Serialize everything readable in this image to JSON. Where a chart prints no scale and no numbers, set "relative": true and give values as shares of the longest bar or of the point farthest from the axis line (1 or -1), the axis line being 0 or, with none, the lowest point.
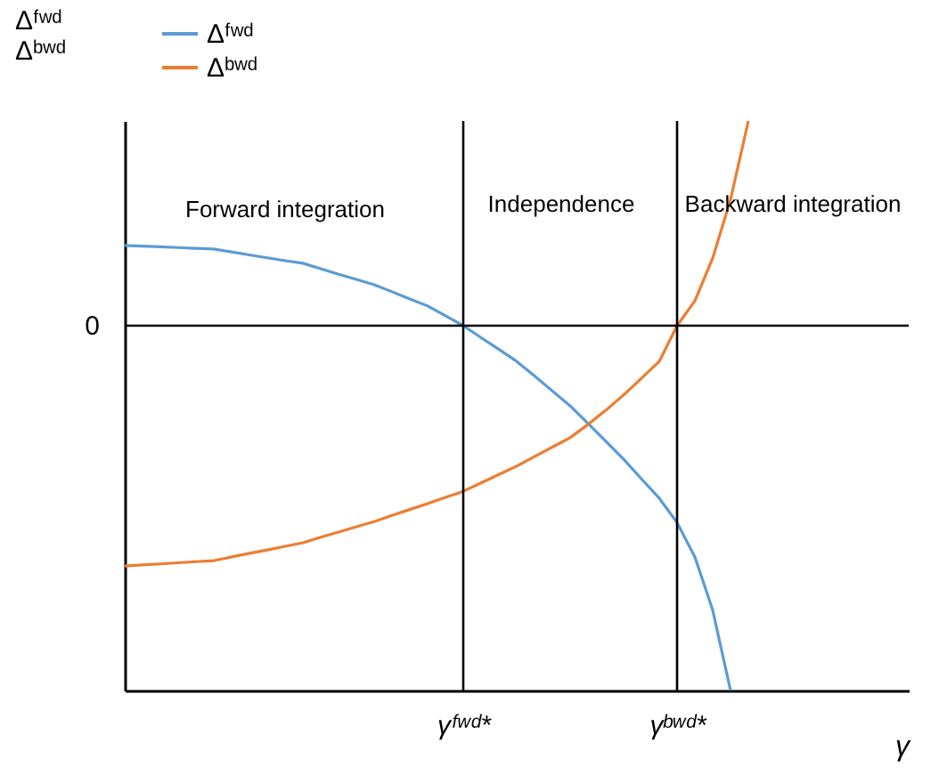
{
  "chart_data": {
    "type": "line",
    "relative": true,
    "xlabel": "γ",
    "ylabel": "Δᶠʷᵈ\nΔᵇʷᵈ",
    "categories": [
      null,
      null,
      null,
      null,
      null,
      null,
      null,
      null,
      null,
      null,
      null,
      null,
      null,
      null,
      null,
      null,
      null,
      null,
      null,
      "γᶠʷᵈ*",
      null,
      null,
      null,
      null,
      null,
      null,
      null,
      null,
      null,
      null,
      null,
      "γᵇʷᵈ*",
      null,
      null,
      null,
      null,
      null,
      null,
      null,
      null,
      null,
      null,
      null,
      null,
      null
    ],
    "series": [
      {
        "name": "Δᶠʷᵈ",
        "color": "#5b9bd5",
        "values": [
          0.22,
          0.218,
          0.216,
          0.214,
          0.212,
          0.21,
          0.202,
          0.194,
          0.186,
          0.178,
          0.171,
          0.156,
          0.141,
          0.127,
          0.112,
          0.093,
          0.073,
          0.054,
          0.027,
          0,
          -0.033,
          -0.065,
          -0.098,
          -0.138,
          -0.179,
          -0.22,
          -0.268,
          -0.317,
          -0.366,
          -0.42,
          -0.473,
          -0.54,
          -0.634,
          -0.78,
          -1,
          null,
          null,
          null,
          null,
          null,
          null,
          null,
          null,
          null,
          null
        ]
      },
      {
        "name": "Δᵇʷᵈ",
        "color": "#ed7d31",
        "values": [
          -0.659,
          -0.656,
          -0.653,
          -0.65,
          -0.647,
          -0.644,
          -0.634,
          -0.624,
          -0.615,
          -0.605,
          -0.595,
          -0.58,
          -0.566,
          -0.551,
          -0.537,
          -0.52,
          -0.504,
          -0.488,
          -0.471,
          -0.454,
          -0.431,
          -0.408,
          -0.385,
          -0.359,
          -0.333,
          -0.307,
          -0.271,
          -0.232,
          -0.19,
          -0.144,
          -0.098,
          0,
          0.068,
          0.185,
          0.346,
          0.561,
          null,
          null,
          null,
          null,
          null,
          null,
          null,
          null,
          null
        ]
      }
    ],
    "ref_lines": [
      {
        "axis": "y",
        "value": 0,
        "label": "0",
        "color": "#000000"
      },
      {
        "axis": "x",
        "value": "γᶠʷᵈ*",
        "color": "#000000"
      },
      {
        "axis": "x",
        "value": "γᵇʷᵈ*",
        "color": "#000000"
      }
    ],
    "annotations": [
      "Forward integration",
      "Independence",
      "Backward integration"
    ],
    "legend": "top left",
    "grid": false,
    "marker": "none",
    "line_style": "solid"
  }
}
